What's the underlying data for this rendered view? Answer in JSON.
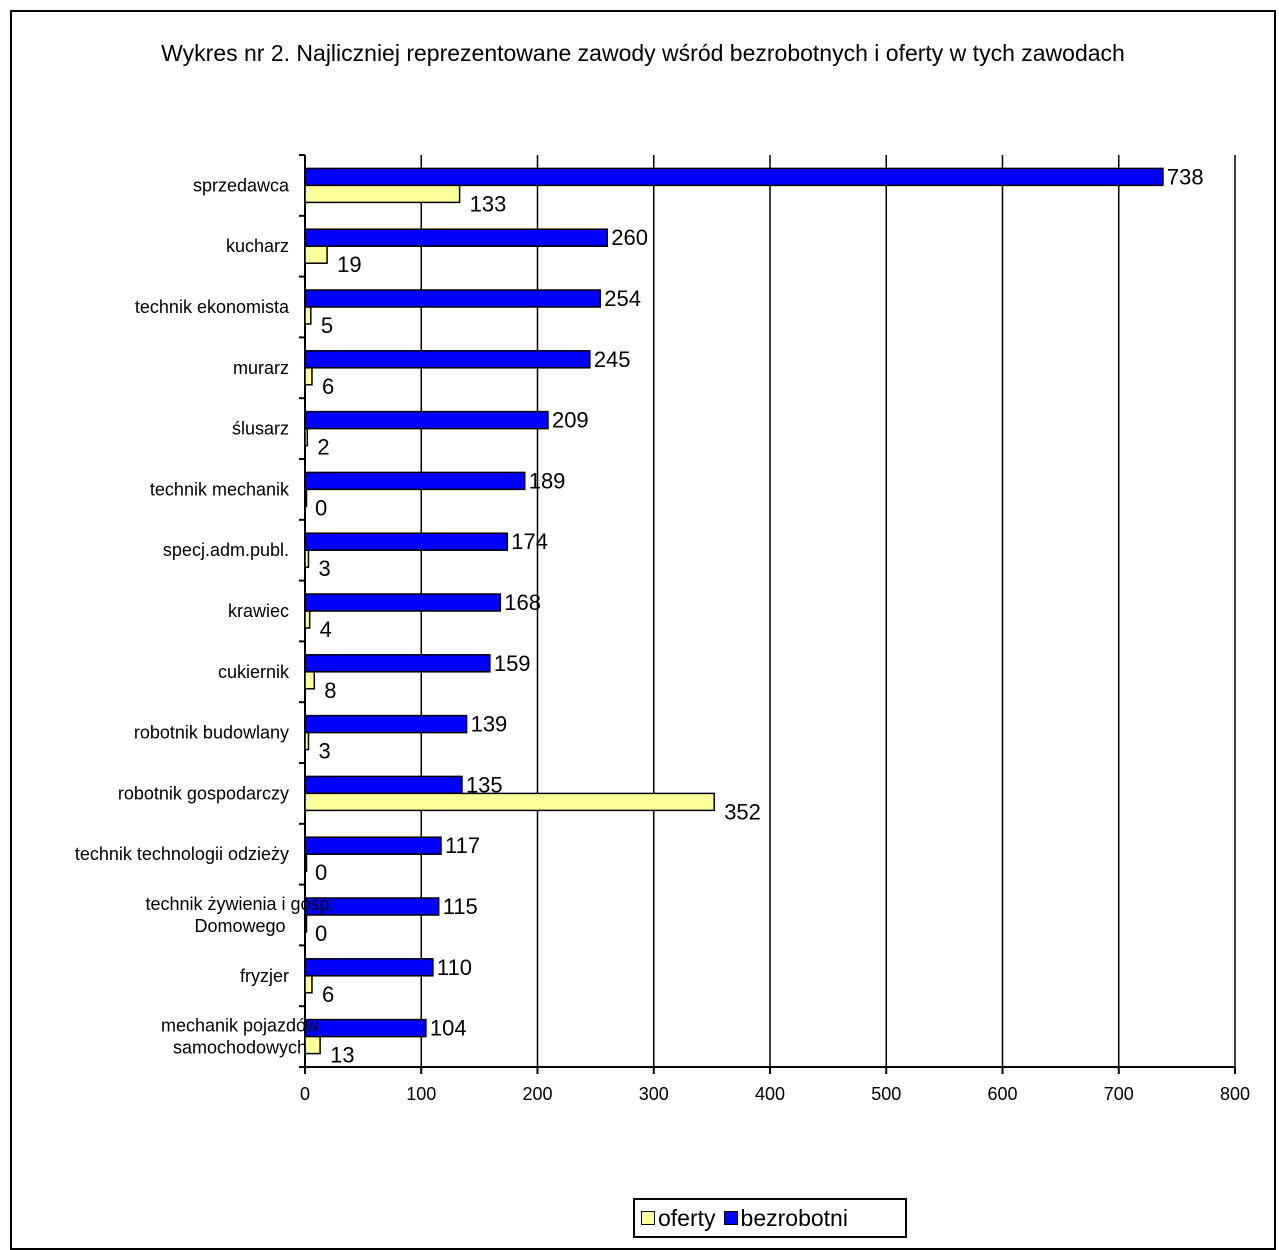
{
  "chart_data": {
    "type": "bar",
    "orientation": "horizontal",
    "title": "Wykres nr 2. Najliczniej reprezentowane zawody wśród bezrobotnych i oferty w tych zawodach",
    "categories": [
      "sprzedawca",
      "kucharz",
      "technik ekonomista",
      "murarz",
      "ślusarz",
      "technik mechanik",
      "specj.adm.publ.",
      "krawiec",
      "cukiernik",
      "robotnik budowlany",
      "robotnik gospodarczy",
      "technik technologii odzieży",
      "technik żywienia i  gosp. Domowego",
      "fryzjer",
      "mechanik pojazdów samochodowych"
    ],
    "category_lines": [
      [
        "sprzedawca"
      ],
      [
        "kucharz"
      ],
      [
        "technik ekonomista"
      ],
      [
        "murarz"
      ],
      [
        "ślusarz"
      ],
      [
        "technik mechanik"
      ],
      [
        "specj.adm.publ."
      ],
      [
        "krawiec"
      ],
      [
        "cukiernik"
      ],
      [
        "robotnik budowlany"
      ],
      [
        "robotnik gospodarczy"
      ],
      [
        "technik technologii odzieży"
      ],
      [
        "technik żywienia i  gosp.",
        "Domowego"
      ],
      [
        "fryzjer"
      ],
      [
        "mechanik pojazdów",
        "samochodowych"
      ]
    ],
    "series": [
      {
        "name": "bezrobotni",
        "color": "#0000ff",
        "values": [
          738,
          260,
          254,
          245,
          209,
          189,
          174,
          168,
          159,
          139,
          135,
          117,
          115,
          110,
          104
        ]
      },
      {
        "name": "oferty",
        "color": "#ffff99",
        "values": [
          133,
          19,
          5,
          6,
          2,
          0,
          3,
          4,
          8,
          3,
          352,
          0,
          0,
          6,
          13
        ]
      }
    ],
    "xlim": [
      0,
      800
    ],
    "x_ticks": [
      0,
      100,
      200,
      300,
      400,
      500,
      600,
      700,
      800
    ],
    "grid": "vertical",
    "legend": {
      "position": "bottom",
      "order": [
        "oferty",
        "bezrobotni"
      ]
    }
  }
}
